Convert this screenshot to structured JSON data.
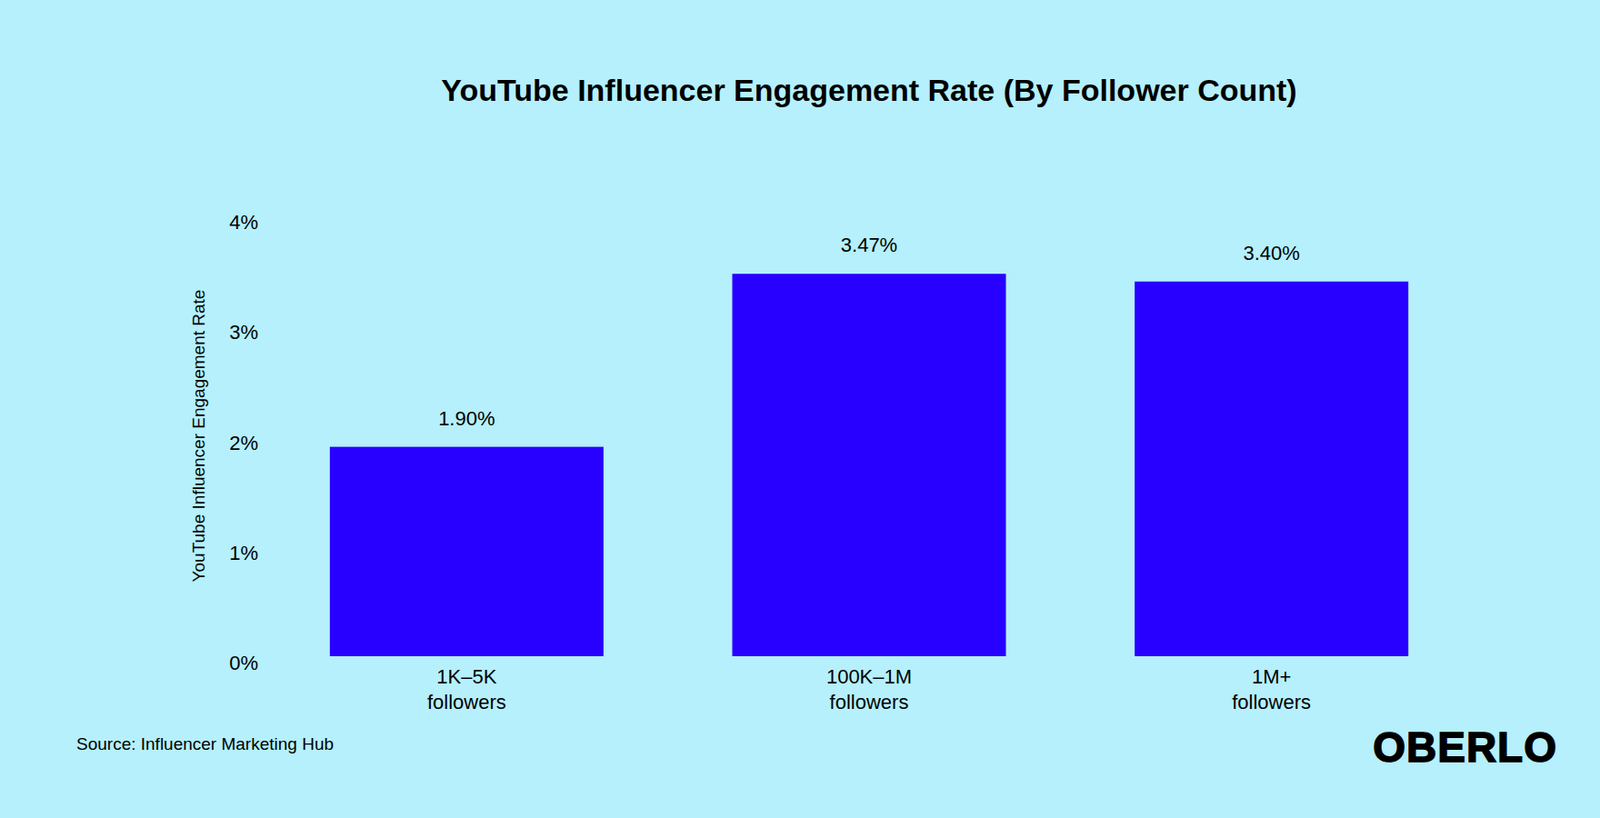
{
  "chart_data": {
    "type": "bar",
    "title": "YouTube Influencer Engagement Rate (By Follower Count)",
    "y_label": "YouTube Influencer Engagement Rate",
    "categories": [
      "1K–5K followers",
      "100K–1M followers",
      "1M+ followers"
    ],
    "values": [
      1.9,
      3.47,
      3.4
    ],
    "value_labels": [
      "1.90%",
      "3.47%",
      "3.40%"
    ],
    "color": "#2800ff",
    "ylim": [
      0,
      4
    ],
    "yticks": [
      {
        "value": 0,
        "label": "0%"
      },
      {
        "value": 1,
        "label": "1%"
      },
      {
        "value": 2,
        "label": "2%"
      },
      {
        "value": 3,
        "label": "3%"
      },
      {
        "value": 4,
        "label": "4%"
      }
    ],
    "grid": false,
    "data_labels": true,
    "source": "Source: Influencer Marketing Hub",
    "brand": "OBERLO"
  }
}
